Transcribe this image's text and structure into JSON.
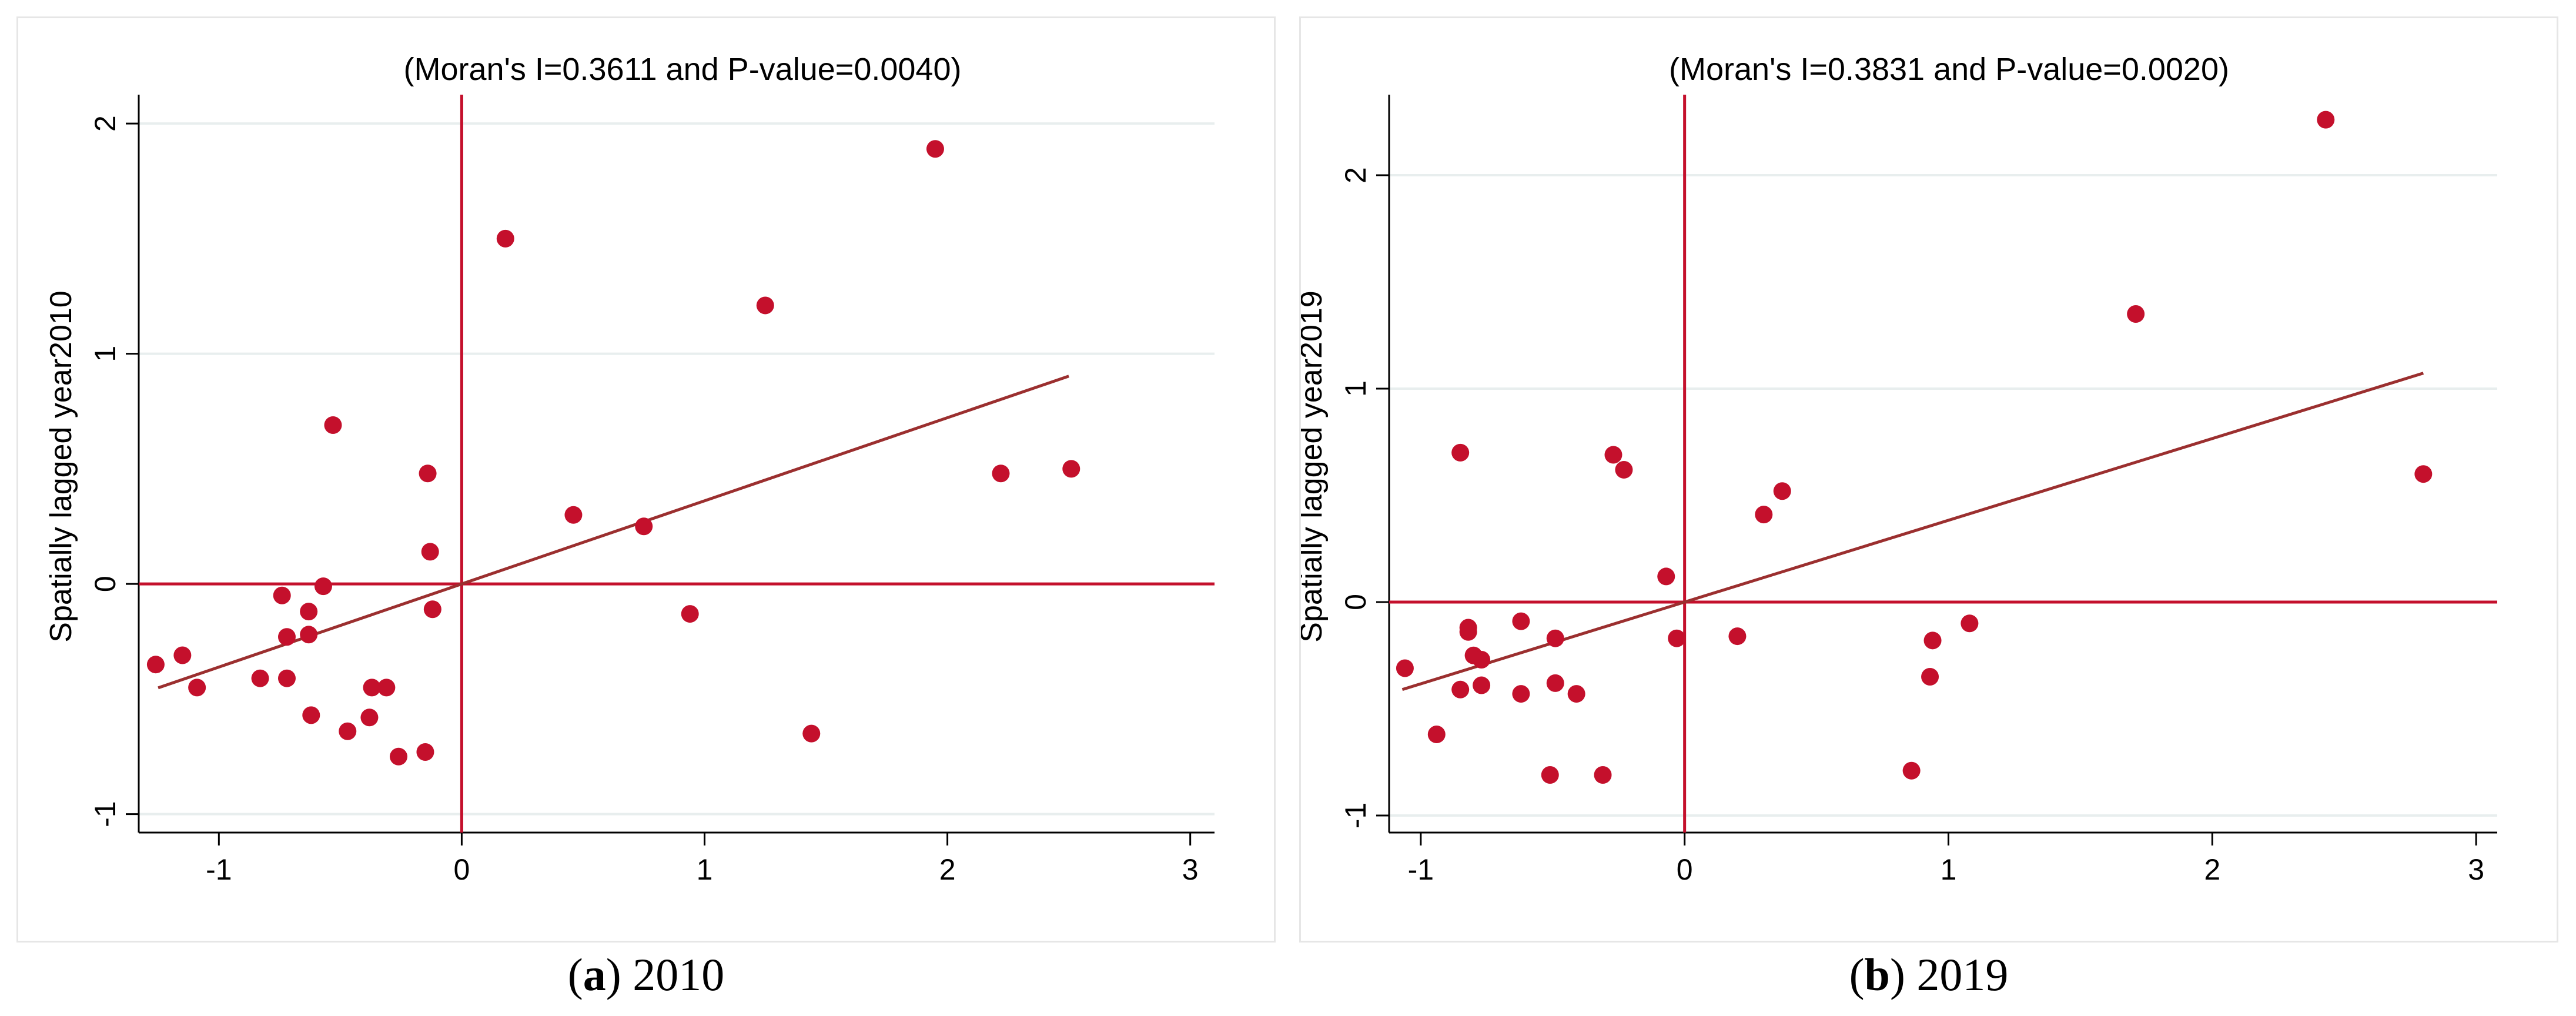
{
  "colors": {
    "point": "#c4102c",
    "fit_line": "#9b2f2f",
    "ref_line": "#c4102c",
    "grid": "#e8eeee",
    "axis": "#000000"
  },
  "chart_data": [
    {
      "type": "scatter",
      "title": "(Moran's I=0.3611 and P-value=0.0040)",
      "xlabel": "",
      "ylabel": "Spatially lagged year2010",
      "xlim": [
        -1.33,
        3.1
      ],
      "ylim": [
        -1.08,
        2.1
      ],
      "xticks": [
        -1,
        0,
        1,
        2,
        3
      ],
      "yticks": [
        -1,
        0,
        1,
        2
      ],
      "fit": {
        "slope": 0.3611,
        "x_range": [
          -1.25,
          2.5
        ]
      },
      "caption_letter": "a",
      "caption_year": "2010",
      "points": [
        [
          -1.26,
          -0.35
        ],
        [
          -1.15,
          -0.31
        ],
        [
          -1.09,
          -0.45
        ],
        [
          -0.83,
          -0.41
        ],
        [
          -0.74,
          -0.05
        ],
        [
          -0.72,
          -0.23
        ],
        [
          -0.72,
          -0.41
        ],
        [
          -0.63,
          -0.12
        ],
        [
          -0.63,
          -0.22
        ],
        [
          -0.62,
          -0.57
        ],
        [
          -0.57,
          -0.01
        ],
        [
          -0.53,
          0.69
        ],
        [
          -0.47,
          -0.64
        ],
        [
          -0.38,
          -0.58
        ],
        [
          -0.37,
          -0.45
        ],
        [
          -0.31,
          -0.45
        ],
        [
          -0.26,
          -0.75
        ],
        [
          -0.15,
          -0.73
        ],
        [
          -0.14,
          0.48
        ],
        [
          -0.13,
          0.14
        ],
        [
          -0.12,
          -0.11
        ],
        [
          0.18,
          1.5
        ],
        [
          0.46,
          0.3
        ],
        [
          0.75,
          0.25
        ],
        [
          0.94,
          -0.13
        ],
        [
          1.25,
          1.21
        ],
        [
          1.44,
          -0.65
        ],
        [
          1.95,
          1.89
        ],
        [
          2.22,
          0.48
        ],
        [
          2.51,
          0.5
        ]
      ]
    },
    {
      "type": "scatter",
      "title": "(Moran's I=0.3831 and P-value=0.0020)",
      "xlabel": "",
      "ylabel": "Spatially lagged year2019",
      "xlim": [
        -1.12,
        3.08
      ],
      "ylim": [
        -1.08,
        2.35
      ],
      "xticks": [
        -1,
        0,
        1,
        2,
        3
      ],
      "yticks": [
        -1,
        0,
        1,
        2
      ],
      "fit": {
        "slope": 0.3831,
        "x_range": [
          -1.07,
          2.8
        ]
      },
      "caption_letter": "b",
      "caption_year": "2019",
      "points": [
        [
          -1.06,
          -0.31
        ],
        [
          -0.94,
          -0.62
        ],
        [
          -0.85,
          -0.41
        ],
        [
          -0.85,
          0.7
        ],
        [
          -0.82,
          -0.12
        ],
        [
          -0.82,
          -0.14
        ],
        [
          -0.8,
          -0.25
        ],
        [
          -0.77,
          -0.27
        ],
        [
          -0.77,
          -0.39
        ],
        [
          -0.62,
          -0.09
        ],
        [
          -0.62,
          -0.43
        ],
        [
          -0.51,
          -0.81
        ],
        [
          -0.49,
          -0.17
        ],
        [
          -0.49,
          -0.38
        ],
        [
          -0.41,
          -0.43
        ],
        [
          -0.31,
          -0.81
        ],
        [
          -0.27,
          0.69
        ],
        [
          -0.23,
          0.62
        ],
        [
          -0.07,
          0.12
        ],
        [
          -0.03,
          -0.17
        ],
        [
          0.2,
          -0.16
        ],
        [
          0.3,
          0.41
        ],
        [
          0.37,
          0.52
        ],
        [
          0.86,
          -0.79
        ],
        [
          0.93,
          -0.35
        ],
        [
          0.94,
          -0.18
        ],
        [
          1.08,
          -0.1
        ],
        [
          1.71,
          1.35
        ],
        [
          2.43,
          2.26
        ],
        [
          2.8,
          0.6
        ]
      ]
    }
  ]
}
